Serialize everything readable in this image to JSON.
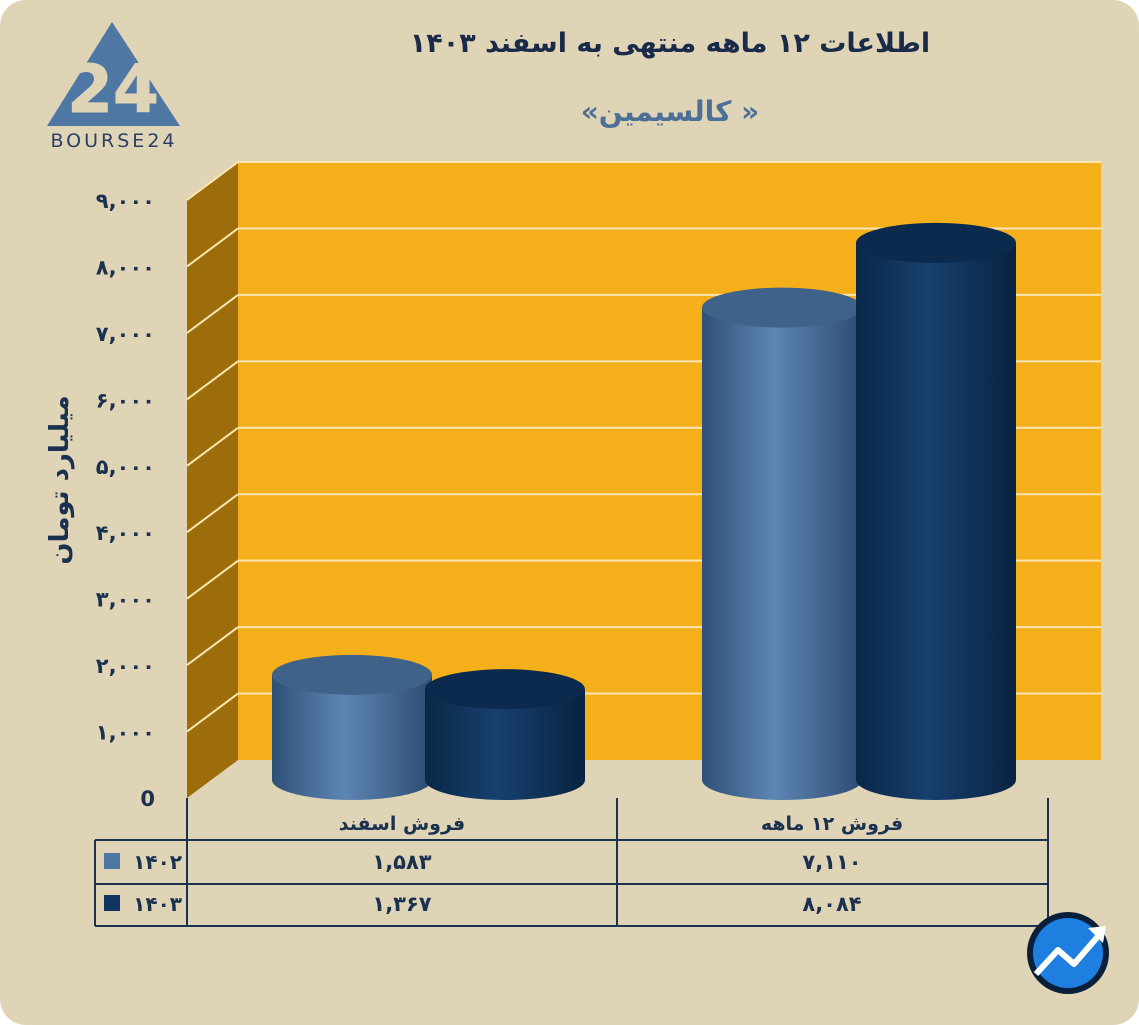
{
  "logo": {
    "text": "BOURSE24",
    "mark": "24"
  },
  "chart_data": {
    "type": "bar",
    "title": "اطلاعات ۱۲ ماهه منتهی به اسفند ۱۴۰۳",
    "subtitle": "« کالسیمین»",
    "ylabel": "میلیارد تومان",
    "xlabel": "",
    "ylim": [
      0,
      9000
    ],
    "yticks": [
      0,
      1000,
      2000,
      3000,
      4000,
      5000,
      6000,
      7000,
      8000,
      9000
    ],
    "ytick_labels": [
      "0",
      "۱,۰۰۰",
      "۲,۰۰۰",
      "۳,۰۰۰",
      "۴,۰۰۰",
      "۵,۰۰۰",
      "۶,۰۰۰",
      "۷,۰۰۰",
      "۸,۰۰۰",
      "۹,۰۰۰"
    ],
    "categories": [
      "فروش اسفند",
      "فروش ۱۲ ماهه"
    ],
    "series": [
      {
        "name": "۱۴۰۲",
        "values": [
          1583,
          7110
        ],
        "value_labels": [
          "۱,۵۸۳",
          "۷,۱۱۰"
        ],
        "color": "#4f77a3"
      },
      {
        "name": "۱۴۰۳",
        "values": [
          1367,
          8084
        ],
        "value_labels": [
          "۱,۳۶۷",
          "۸,۰۸۴"
        ],
        "color": "#0f3560"
      }
    ],
    "grid": true,
    "legend": "data-table"
  },
  "colors": {
    "background": "#e0d4b6",
    "plot_back": "#f5af1a",
    "plot_side": "#9c6d0a",
    "text_dark": "#1a3150"
  }
}
